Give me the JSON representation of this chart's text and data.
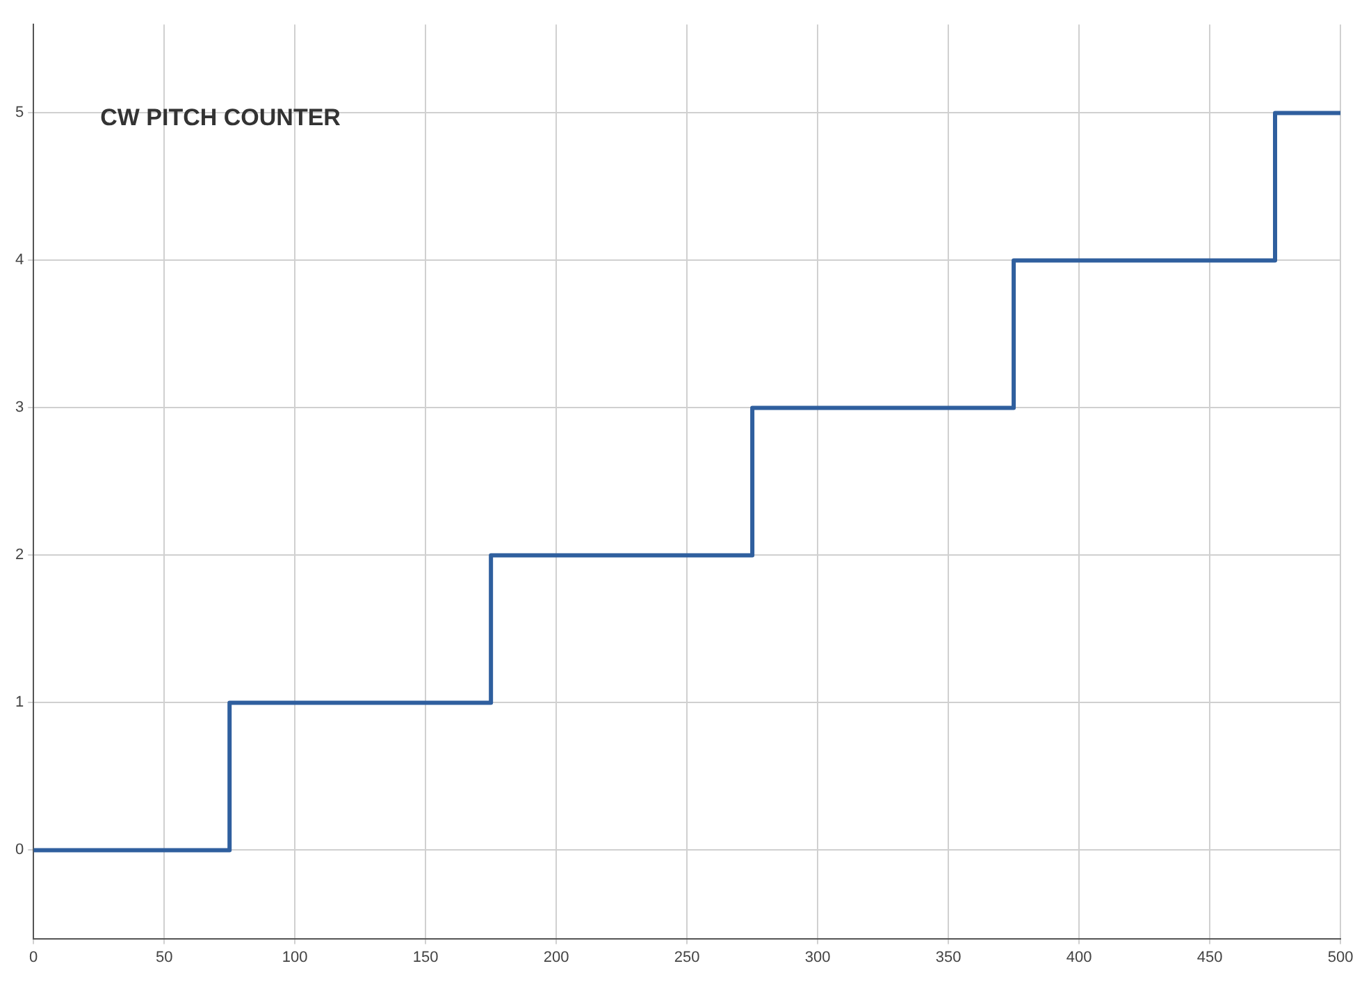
{
  "chart_data": {
    "type": "step",
    "title": "CW PITCH COUNTER",
    "x": [
      0,
      75,
      175,
      275,
      375,
      475,
      500
    ],
    "series": [
      {
        "color": "#2f5f9e",
        "values": [
          0,
          1,
          2,
          3,
          4,
          5,
          5
        ]
      }
    ],
    "xlim": [
      0,
      500
    ],
    "xticks": [
      0,
      50,
      100,
      150,
      200,
      250,
      300,
      350,
      400,
      450,
      500
    ],
    "ylim": [
      -0.6,
      5.6
    ],
    "yticks": [
      0,
      1,
      2,
      3,
      4,
      5
    ],
    "grid": true,
    "legend": false
  }
}
